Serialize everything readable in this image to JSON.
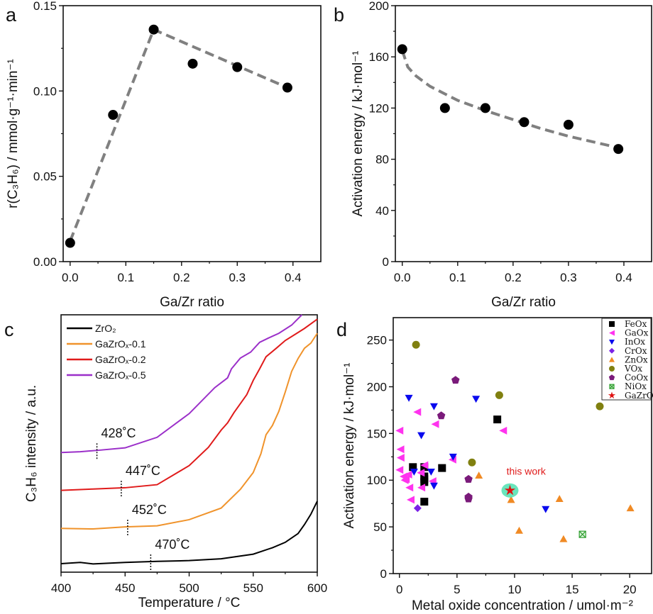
{
  "chart_data": [
    {
      "panel": "a",
      "type": "scatter",
      "xlabel": "Ga/Zr ratio",
      "ylabel": "r(C₃H₆) / mmol·g⁻¹·min⁻¹",
      "xlim": [
        -0.0125,
        0.45
      ],
      "ylim": [
        0,
        0.15
      ],
      "xticks": [
        0.0,
        0.1,
        0.2,
        0.3,
        0.4
      ],
      "xtick_labels": [
        "0.0",
        "0.1",
        "0.2",
        "0.3",
        "0.4"
      ],
      "yticks": [
        0.0,
        0.05,
        0.1,
        0.15
      ],
      "ytick_labels": [
        "0.00",
        "0.05",
        "0.10",
        "0.15"
      ],
      "x": [
        0.0,
        0.077,
        0.15,
        0.22,
        0.3,
        0.39
      ],
      "y": [
        0.011,
        0.086,
        0.136,
        0.116,
        0.114,
        0.102
      ],
      "trend_line": {
        "style": "dashed",
        "color": "#808080",
        "x": [
          0.0,
          0.15,
          0.39
        ],
        "y": [
          0.012,
          0.136,
          0.102
        ]
      },
      "marker_color": "#000000",
      "grid": false
    },
    {
      "panel": "b",
      "type": "scatter",
      "xlabel": "Ga/Zr ratio",
      "ylabel": "Activation energy / kJ·mol⁻¹",
      "xlim": [
        -0.0125,
        0.45
      ],
      "ylim": [
        0,
        200
      ],
      "xticks": [
        0.0,
        0.1,
        0.2,
        0.3,
        0.4
      ],
      "xtick_labels": [
        "0.0",
        "0.1",
        "0.2",
        "0.3",
        "0.4"
      ],
      "yticks": [
        0,
        40,
        80,
        120,
        160,
        200
      ],
      "ytick_labels": [
        "0",
        "40",
        "80",
        "120",
        "160",
        "200"
      ],
      "x": [
        0.0,
        0.077,
        0.15,
        0.22,
        0.3,
        0.39
      ],
      "y": [
        166,
        120,
        120,
        109,
        107,
        88
      ],
      "trend_line": {
        "style": "dashed",
        "color": "#808080",
        "x": [
          0.0,
          0.01,
          0.025,
          0.05,
          0.1,
          0.15,
          0.2,
          0.25,
          0.3,
          0.35,
          0.39
        ],
        "y": [
          165,
          152,
          145,
          137,
          126,
          118,
          111,
          104,
          98,
          93,
          89
        ]
      },
      "marker_color": "#000000",
      "grid": false
    },
    {
      "panel": "c",
      "type": "line",
      "xlabel": "Temperature / °C",
      "ylabel": "C₃H₆ intensity / a.u.",
      "xlim": [
        400,
        600
      ],
      "ylim": [
        0,
        100
      ],
      "xticks": [
        400,
        450,
        500,
        550,
        600
      ],
      "xtick_labels": [
        "400",
        "450",
        "500",
        "550",
        "600"
      ],
      "legend_position": "top-left",
      "series": [
        {
          "name": "ZrO₂",
          "color": "#000000",
          "x": [
            400,
            415,
            425,
            450,
            475,
            500,
            525,
            550,
            565,
            575,
            585,
            590,
            595,
            600
          ],
          "y": [
            3.3,
            3.8,
            3.2,
            3.8,
            4.2,
            4.5,
            5.2,
            7,
            9.5,
            11.6,
            15,
            18.5,
            22.5,
            27.6
          ],
          "onset": 470,
          "onset_label": "470˚C"
        },
        {
          "name": "GaZrOₓ-0.1",
          "color": "#f0932b",
          "x": [
            400,
            425,
            450,
            475,
            500,
            525,
            540,
            550,
            556,
            560,
            565,
            570,
            575,
            580,
            585,
            590,
            595,
            600
          ],
          "y": [
            17,
            16.8,
            17.6,
            18,
            20.4,
            24.9,
            32.2,
            38.7,
            46,
            53.4,
            57,
            62.5,
            70,
            78,
            83,
            87,
            89,
            92.8
          ],
          "onset": 452,
          "onset_label": "452˚C"
        },
        {
          "name": "GaZrOₓ-0.2",
          "color": "#e01b1b",
          "x": [
            400,
            425,
            450,
            475,
            500,
            515,
            525,
            530,
            535,
            545,
            550,
            555,
            560,
            568,
            575,
            583,
            590,
            600
          ],
          "y": [
            31.8,
            32.3,
            32.8,
            34,
            41.4,
            48.5,
            55.2,
            58,
            62,
            69,
            74.5,
            79,
            83.7,
            87,
            90,
            92.5,
            94.7,
            98.3
          ],
          "onset": 447,
          "onset_label": "447˚C"
        },
        {
          "name": "GaZrOₓ-0.5",
          "color": "#9b2fc9",
          "x": [
            400,
            415,
            430,
            450,
            475,
            500,
            520,
            530,
            533,
            540,
            548,
            555,
            562,
            570,
            580,
            588
          ],
          "y": [
            46.5,
            46.8,
            47.4,
            48.3,
            52.4,
            61.6,
            71.7,
            75.5,
            79,
            83.2,
            85.5,
            89.3,
            91,
            92.8,
            96,
            100
          ],
          "onset": 428,
          "onset_label": "428˚C"
        }
      ],
      "grid": false
    },
    {
      "panel": "d",
      "type": "scatter",
      "xlabel": "Metal oxide concentration / umol·m⁻²",
      "ylabel": "Activation energy / kJ·mol⁻¹",
      "xlim": [
        -0.54,
        21.9
      ],
      "ylim": [
        0,
        274
      ],
      "xticks": [
        0,
        5,
        10,
        15,
        20
      ],
      "xtick_labels": [
        "0",
        "5",
        "10",
        "15",
        "20"
      ],
      "yticks": [
        0,
        50,
        100,
        150,
        200,
        250
      ],
      "ytick_labels": [
        "0",
        "50",
        "100",
        "150",
        "200",
        "250"
      ],
      "legend_position": "top-right",
      "annotation": {
        "text": "this work",
        "color": "#e01b1b"
      },
      "series": [
        {
          "name": "FeOx",
          "marker": "square",
          "color": "#000000",
          "x": [
            1.17,
            2.16,
            2.16,
            2.16,
            2.16,
            3.7,
            2.16,
            8.5
          ],
          "y": [
            114,
            114,
            104,
            98,
            101,
            113,
            77,
            165
          ]
        },
        {
          "name": "GaOx",
          "marker": "triangle-left",
          "color": "#ff33ee",
          "x": [
            0.0,
            1.54,
            3.1,
            0.08,
            0.1,
            0.0,
            0.35,
            0.55,
            0.76,
            0.86,
            0.97,
            1.9,
            1.85,
            2.16,
            2.87,
            4.6,
            9.0,
            0.45
          ],
          "y": [
            153,
            173,
            160,
            133,
            124,
            111,
            104,
            101,
            106,
            92,
            79,
            92,
            108,
            116,
            99,
            122,
            153,
            100
          ]
        },
        {
          "name": "InOx",
          "marker": "triangle-down",
          "color": "#0a0aee",
          "x": [
            0.82,
            3.0,
            6.65,
            1.9,
            4.66,
            1.27,
            2.75,
            3.0,
            12.7
          ],
          "y": [
            188,
            179,
            187,
            148,
            125,
            109,
            109,
            94,
            69
          ]
        },
        {
          "name": "CrOx",
          "marker": "diamond",
          "color": "#7b22e6",
          "x": [
            1.58
          ],
          "y": [
            70
          ]
        },
        {
          "name": "ZnOx",
          "marker": "triangle-up",
          "color": "#f08a24",
          "x": [
            6.9,
            9.7,
            13.9,
            10.4,
            14.25,
            20.06
          ],
          "y": [
            105,
            79,
            80,
            46,
            37,
            70
          ]
        },
        {
          "name": "VOx",
          "marker": "circle",
          "color": "#808010",
          "x": [
            1.44,
            8.67,
            17.4,
            6.3
          ],
          "y": [
            245,
            191,
            179,
            119
          ]
        },
        {
          "name": "CoOx",
          "marker": "pentagon",
          "color": "#7a1a7a",
          "x": [
            4.87,
            3.63,
            6.0,
            6.0,
            6.0
          ],
          "y": [
            207,
            169,
            101,
            82,
            80
          ]
        },
        {
          "name": "NiOx",
          "marker": "crossed-square",
          "color": "#2e9e2e",
          "x": [
            15.9
          ],
          "y": [
            42
          ]
        },
        {
          "name": "GaZrOx",
          "marker": "star",
          "color": "#e01010",
          "x": [
            9.6
          ],
          "y": [
            89
          ],
          "highlight_color": "#4fe0b0"
        }
      ],
      "grid": false
    }
  ],
  "panel_labels": [
    "a",
    "b",
    "c",
    "d"
  ]
}
